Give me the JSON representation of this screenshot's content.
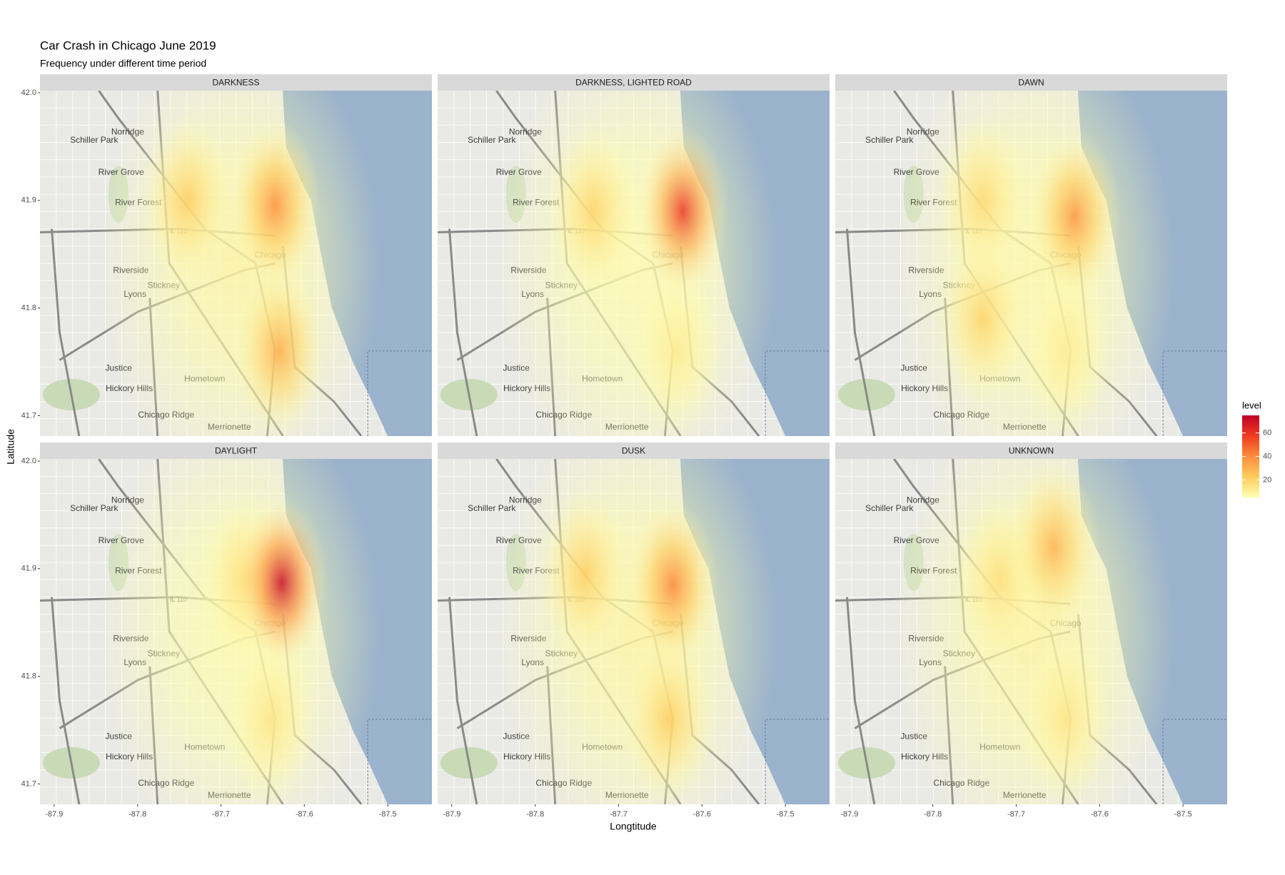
{
  "chart_data": {
    "type": "density-map",
    "title": "Car Crash in Chicago June 2019",
    "subtitle": "Frequency under different time period",
    "xlabel": "Longtitude",
    "ylabel": "Latitude",
    "xlim": [
      -87.917,
      -87.447
    ],
    "ylim": [
      41.681,
      42.002
    ],
    "xticks": [
      -87.9,
      -87.8,
      -87.7,
      -87.6,
      -87.5
    ],
    "yticks": [
      41.7,
      41.8,
      41.9,
      {
        "value": 42.0,
        "label": "42.0"
      }
    ],
    "legend_title": "level",
    "colorscale": [
      "#ffffb2",
      "#fecc5c",
      "#fd8d3c",
      "#f03b20",
      "#bd0026"
    ],
    "colorlim": [
      5,
      75
    ],
    "colorticks": [
      20,
      40,
      60
    ],
    "places": [
      "Schiller Park",
      "Norridge",
      "River Grove",
      "River Forest",
      "Riverside",
      "Stickney",
      "Lyons",
      "Justice",
      "Hickory Hills",
      "Chicago Ridge",
      "Hometown",
      "Merrionette",
      "Chicago",
      "IL 110"
    ],
    "facets": [
      {
        "name": "DARKNESS",
        "hotspots": [
          {
            "x": -87.68,
            "y": 41.84,
            "level": 8
          },
          {
            "x": -87.74,
            "y": 41.9,
            "level": 22
          },
          {
            "x": -87.63,
            "y": 41.76,
            "level": 32
          },
          {
            "x": -87.635,
            "y": 41.895,
            "level": 40
          }
        ]
      },
      {
        "name": "DARKNESS, LIGHTED ROAD",
        "hotspots": [
          {
            "x": -87.68,
            "y": 41.84,
            "level": 6
          },
          {
            "x": -87.63,
            "y": 41.76,
            "level": 12
          },
          {
            "x": -87.73,
            "y": 41.89,
            "level": 20
          },
          {
            "x": -87.623,
            "y": 41.89,
            "level": 60
          }
        ]
      },
      {
        "name": "DAWN",
        "hotspots": [
          {
            "x": -87.68,
            "y": 41.84,
            "level": 7
          },
          {
            "x": -87.64,
            "y": 41.76,
            "level": 12
          },
          {
            "x": -87.74,
            "y": 41.9,
            "level": 18
          },
          {
            "x": -87.74,
            "y": 41.79,
            "level": 20
          },
          {
            "x": -87.63,
            "y": 41.885,
            "level": 38
          }
        ]
      },
      {
        "name": "DAYLIGHT",
        "hotspots": [
          {
            "x": -87.68,
            "y": 41.84,
            "level": 6
          },
          {
            "x": -87.64,
            "y": 41.76,
            "level": 14
          },
          {
            "x": -87.67,
            "y": 41.89,
            "level": 18
          },
          {
            "x": -87.627,
            "y": 41.887,
            "level": 72
          }
        ]
      },
      {
        "name": "DUSK",
        "hotspots": [
          {
            "x": -87.68,
            "y": 41.84,
            "level": 8
          },
          {
            "x": -87.64,
            "y": 41.76,
            "level": 22
          },
          {
            "x": -87.74,
            "y": 41.895,
            "level": 22
          },
          {
            "x": -87.635,
            "y": 41.885,
            "level": 42
          }
        ]
      },
      {
        "name": "UNKNOWN",
        "hotspots": [
          {
            "x": -87.68,
            "y": 41.84,
            "level": 8
          },
          {
            "x": -87.64,
            "y": 41.76,
            "level": 14
          },
          {
            "x": -87.72,
            "y": 41.89,
            "level": 16
          },
          {
            "x": -87.655,
            "y": 41.92,
            "level": 30
          }
        ]
      }
    ]
  }
}
